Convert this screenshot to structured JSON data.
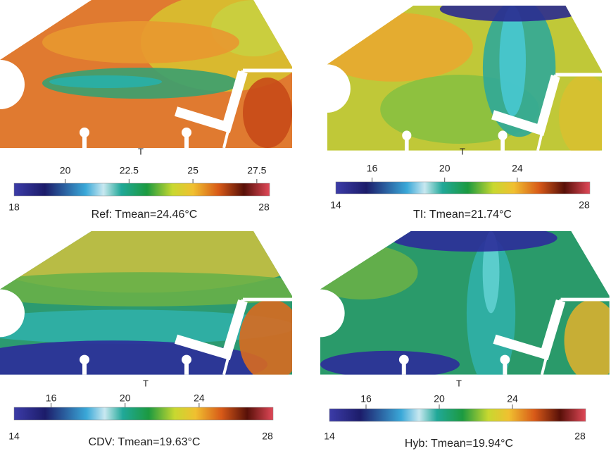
{
  "panels": [
    {
      "variable": "T",
      "range": [
        18,
        28
      ],
      "ticks": [
        20,
        22.5,
        25,
        27.5
      ],
      "caption": "Ref: Tmean=24.46°C"
    },
    {
      "variable": "T",
      "range": [
        14,
        28
      ],
      "ticks": [
        16,
        20,
        24
      ],
      "caption": "TI: Tmean=21.74°C"
    },
    {
      "variable": "T",
      "range": [
        14,
        28
      ],
      "ticks": [
        16,
        20,
        24
      ],
      "caption": "CDV: Tmean=19.63°C"
    },
    {
      "variable": "T",
      "range": [
        14,
        28
      ],
      "ticks": [
        16,
        20,
        24
      ],
      "caption": "Hyb: Tmean=19.94°C"
    }
  ]
}
